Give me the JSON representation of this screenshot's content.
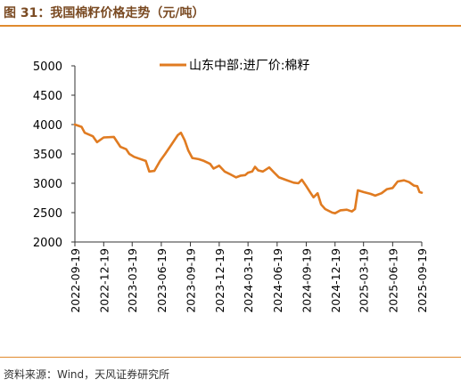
{
  "header": {
    "title": "图 31：我国棉籽价格走势（元/吨）"
  },
  "footer": {
    "source": "资料来源：Wind，天风证券研究所"
  },
  "colors": {
    "series": "#e07b21",
    "rule": "#e08a2e",
    "title": "#7a4a22"
  },
  "chart_data": {
    "type": "line",
    "title": "图 31：我国棉籽价格走势（元/吨）",
    "xlabel": "",
    "ylabel": "",
    "ylim": [
      2000,
      5000
    ],
    "yticks": [
      2000,
      2500,
      3000,
      3500,
      4000,
      4500,
      5000
    ],
    "xlim": [
      "2022-09-19",
      "2025-09-19"
    ],
    "xticks": [
      "2022-09-19",
      "2022-12-19",
      "2023-03-19",
      "2023-06-19",
      "2023-09-19",
      "2023-12-19",
      "2024-03-19",
      "2024-06-19",
      "2024-09-19",
      "2024-12-19",
      "2025-03-19",
      "2025-06-19",
      "2025-09-19"
    ],
    "grid": false,
    "legend": "top-center",
    "series": [
      {
        "name": "山东中部:进厂价:棉籽",
        "points": [
          [
            "2022-09-19",
            4000
          ],
          [
            "2022-10-10",
            3960
          ],
          [
            "2022-10-20",
            3860
          ],
          [
            "2022-11-15",
            3800
          ],
          [
            "2022-11-28",
            3700
          ],
          [
            "2022-12-19",
            3780
          ],
          [
            "2023-01-20",
            3790
          ],
          [
            "2023-02-10",
            3620
          ],
          [
            "2023-02-28",
            3580
          ],
          [
            "2023-03-10",
            3500
          ],
          [
            "2023-03-25",
            3450
          ],
          [
            "2023-04-10",
            3420
          ],
          [
            "2023-05-01",
            3380
          ],
          [
            "2023-05-12",
            3200
          ],
          [
            "2023-05-28",
            3210
          ],
          [
            "2023-06-15",
            3380
          ],
          [
            "2023-07-01",
            3500
          ],
          [
            "2023-07-20",
            3650
          ],
          [
            "2023-08-10",
            3820
          ],
          [
            "2023-08-20",
            3860
          ],
          [
            "2023-09-01",
            3730
          ],
          [
            "2023-09-12",
            3560
          ],
          [
            "2023-09-25",
            3430
          ],
          [
            "2023-10-15",
            3410
          ],
          [
            "2023-11-01",
            3380
          ],
          [
            "2023-11-20",
            3330
          ],
          [
            "2023-12-01",
            3250
          ],
          [
            "2023-12-19",
            3300
          ],
          [
            "2024-01-05",
            3200
          ],
          [
            "2024-01-20",
            3160
          ],
          [
            "2024-02-10",
            3100
          ],
          [
            "2024-02-25",
            3130
          ],
          [
            "2024-03-10",
            3140
          ],
          [
            "2024-03-19",
            3180
          ],
          [
            "2024-04-01",
            3200
          ],
          [
            "2024-04-10",
            3280
          ],
          [
            "2024-04-20",
            3220
          ],
          [
            "2024-05-05",
            3200
          ],
          [
            "2024-05-25",
            3270
          ],
          [
            "2024-06-10",
            3180
          ],
          [
            "2024-06-25",
            3100
          ],
          [
            "2024-07-15",
            3060
          ],
          [
            "2024-08-10",
            3010
          ],
          [
            "2024-08-25",
            3000
          ],
          [
            "2024-09-05",
            3060
          ],
          [
            "2024-09-19",
            2950
          ],
          [
            "2024-10-01",
            2850
          ],
          [
            "2024-10-12",
            2760
          ],
          [
            "2024-10-25",
            2830
          ],
          [
            "2024-11-05",
            2640
          ],
          [
            "2024-11-18",
            2560
          ],
          [
            "2024-12-10",
            2500
          ],
          [
            "2024-12-19",
            2490
          ],
          [
            "2025-01-05",
            2540
          ],
          [
            "2025-01-25",
            2550
          ],
          [
            "2025-02-10",
            2520
          ],
          [
            "2025-02-20",
            2560
          ],
          [
            "2025-03-01",
            2880
          ],
          [
            "2025-03-19",
            2850
          ],
          [
            "2025-04-10",
            2820
          ],
          [
            "2025-04-25",
            2790
          ],
          [
            "2025-05-15",
            2830
          ],
          [
            "2025-06-01",
            2900
          ],
          [
            "2025-06-19",
            2920
          ],
          [
            "2025-07-05",
            3030
          ],
          [
            "2025-07-25",
            3050
          ],
          [
            "2025-08-10",
            3020
          ],
          [
            "2025-08-25",
            2960
          ],
          [
            "2025-09-05",
            2950
          ],
          [
            "2025-09-12",
            2850
          ],
          [
            "2025-09-19",
            2840
          ]
        ]
      }
    ]
  }
}
